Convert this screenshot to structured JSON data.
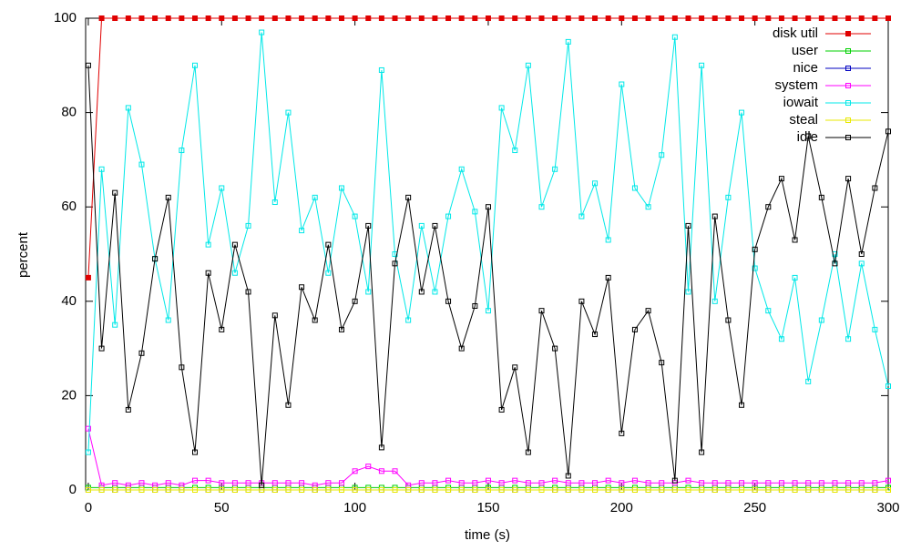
{
  "chart_data": {
    "type": "line",
    "x_label": "time (s)",
    "y_label": "percent",
    "xlim": [
      -1,
      300
    ],
    "xticks": [
      0,
      50,
      100,
      150,
      200,
      250,
      300
    ],
    "ylim": [
      0,
      100
    ],
    "yticks": [
      0,
      20,
      40,
      60,
      80,
      100
    ],
    "legend": "top-right",
    "x": [
      0,
      5,
      10,
      15,
      20,
      25,
      30,
      35,
      40,
      45,
      50,
      55,
      60,
      65,
      70,
      75,
      80,
      85,
      90,
      95,
      100,
      105,
      110,
      115,
      120,
      125,
      130,
      135,
      140,
      145,
      150,
      155,
      160,
      165,
      170,
      175,
      180,
      185,
      190,
      195,
      200,
      205,
      210,
      215,
      220,
      225,
      230,
      235,
      240,
      245,
      250,
      255,
      260,
      265,
      270,
      275,
      280,
      285,
      290,
      295,
      300
    ],
    "series": [
      {
        "name": "disk util",
        "color": "#e00000",
        "filled": true,
        "values": [
          45,
          100,
          100,
          100,
          100,
          100,
          100,
          100,
          100,
          100,
          100,
          100,
          100,
          100,
          100,
          100,
          100,
          100,
          100,
          100,
          100,
          100,
          100,
          100,
          100,
          100,
          100,
          100,
          100,
          100,
          100,
          100,
          100,
          100,
          100,
          100,
          100,
          100,
          100,
          100,
          100,
          100,
          100,
          100,
          100,
          100,
          100,
          100,
          100,
          100,
          100,
          100,
          100,
          100,
          100,
          100,
          100,
          100,
          100,
          100,
          100
        ]
      },
      {
        "name": "user",
        "color": "#00d000",
        "values": [
          0.5,
          0.5,
          0.5,
          0.5,
          0.5,
          0.5,
          0.5,
          0.5,
          0.5,
          0.5,
          0.5,
          0.5,
          0.5,
          0.5,
          0.5,
          0.5,
          0.5,
          0.5,
          0.5,
          0.5,
          0.5,
          0.5,
          0.5,
          0.5,
          0.5,
          0.5,
          0.5,
          0.5,
          0.5,
          0.5,
          0.5,
          0.5,
          0.5,
          0.5,
          0.5,
          0.5,
          0.5,
          0.5,
          0.5,
          0.5,
          0.5,
          0.5,
          0.5,
          0.5,
          0.5,
          0.5,
          0.5,
          0.5,
          0.5,
          0.5,
          0.5,
          0.5,
          0.5,
          0.5,
          0.5,
          0.5,
          0.5,
          0.5,
          0.5,
          0.5,
          0.5
        ]
      },
      {
        "name": "nice",
        "color": "#0000c0",
        "values": [
          0,
          0,
          0,
          0,
          0,
          0,
          0,
          0,
          0,
          0,
          0,
          0,
          0,
          0,
          0,
          0,
          0,
          0,
          0,
          0,
          0,
          0,
          0,
          0,
          0,
          0,
          0,
          0,
          0,
          0,
          0,
          0,
          0,
          0,
          0,
          0,
          0,
          0,
          0,
          0,
          0,
          0,
          0,
          0,
          0,
          0,
          0,
          0,
          0,
          0,
          0,
          0,
          0,
          0,
          0,
          0,
          0,
          0,
          0,
          0,
          0
        ]
      },
      {
        "name": "system",
        "color": "#ff00ff",
        "values": [
          13,
          1,
          1.5,
          1,
          1.5,
          1,
          1.5,
          1,
          2,
          2,
          1.5,
          1.5,
          1.5,
          1.5,
          1.5,
          1.5,
          1.5,
          1,
          1.5,
          1.5,
          4,
          5,
          4,
          4,
          1,
          1.5,
          1.5,
          2,
          1.5,
          1.5,
          2,
          1.5,
          2,
          1.5,
          1.5,
          2,
          1.5,
          1.5,
          1.5,
          2,
          1.5,
          2,
          1.5,
          1.5,
          1.5,
          2,
          1.5,
          1.5,
          1.5,
          1.5,
          1.5,
          1.5,
          1.5,
          1.5,
          1.5,
          1.5,
          1.5,
          1.5,
          1.5,
          1.5,
          2
        ]
      },
      {
        "name": "iowait",
        "color": "#00e8e8",
        "values": [
          8,
          68,
          35,
          81,
          69,
          49,
          36,
          72,
          90,
          52,
          64,
          46,
          56,
          97,
          61,
          80,
          55,
          62,
          46,
          64,
          58,
          42,
          89,
          50,
          36,
          56,
          42,
          58,
          68,
          59,
          38,
          81,
          72,
          90,
          60,
          68,
          95,
          58,
          65,
          53,
          86,
          64,
          60,
          71,
          96,
          42,
          90,
          40,
          62,
          80,
          47,
          38,
          32,
          45,
          23,
          36,
          50,
          32,
          48,
          34,
          22
        ]
      },
      {
        "name": "steal",
        "color": "#e8e800",
        "values": [
          0,
          0,
          0,
          0,
          0,
          0,
          0,
          0,
          0,
          0,
          0,
          0,
          0,
          0,
          0,
          0,
          0,
          0,
          0,
          0,
          0,
          0,
          0,
          0,
          0,
          0,
          0,
          0,
          0,
          0,
          0,
          0,
          0,
          0,
          0,
          0,
          0,
          0,
          0,
          0,
          0,
          0,
          0,
          0,
          0,
          0,
          0,
          0,
          0,
          0,
          0,
          0,
          0,
          0,
          0,
          0,
          0,
          0,
          0,
          0,
          0
        ]
      },
      {
        "name": "idle",
        "color": "#000000",
        "values": [
          90,
          30,
          63,
          17,
          29,
          49,
          62,
          26,
          8,
          46,
          34,
          52,
          42,
          1,
          37,
          18,
          43,
          36,
          52,
          34,
          40,
          56,
          9,
          48,
          62,
          42,
          56,
          40,
          30,
          39,
          60,
          17,
          26,
          8,
          38,
          30,
          3,
          40,
          33,
          45,
          12,
          34,
          38,
          27,
          2,
          56,
          8,
          58,
          36,
          18,
          51,
          60,
          66,
          53,
          75,
          62,
          48,
          66,
          50,
          64,
          76
        ]
      }
    ]
  }
}
